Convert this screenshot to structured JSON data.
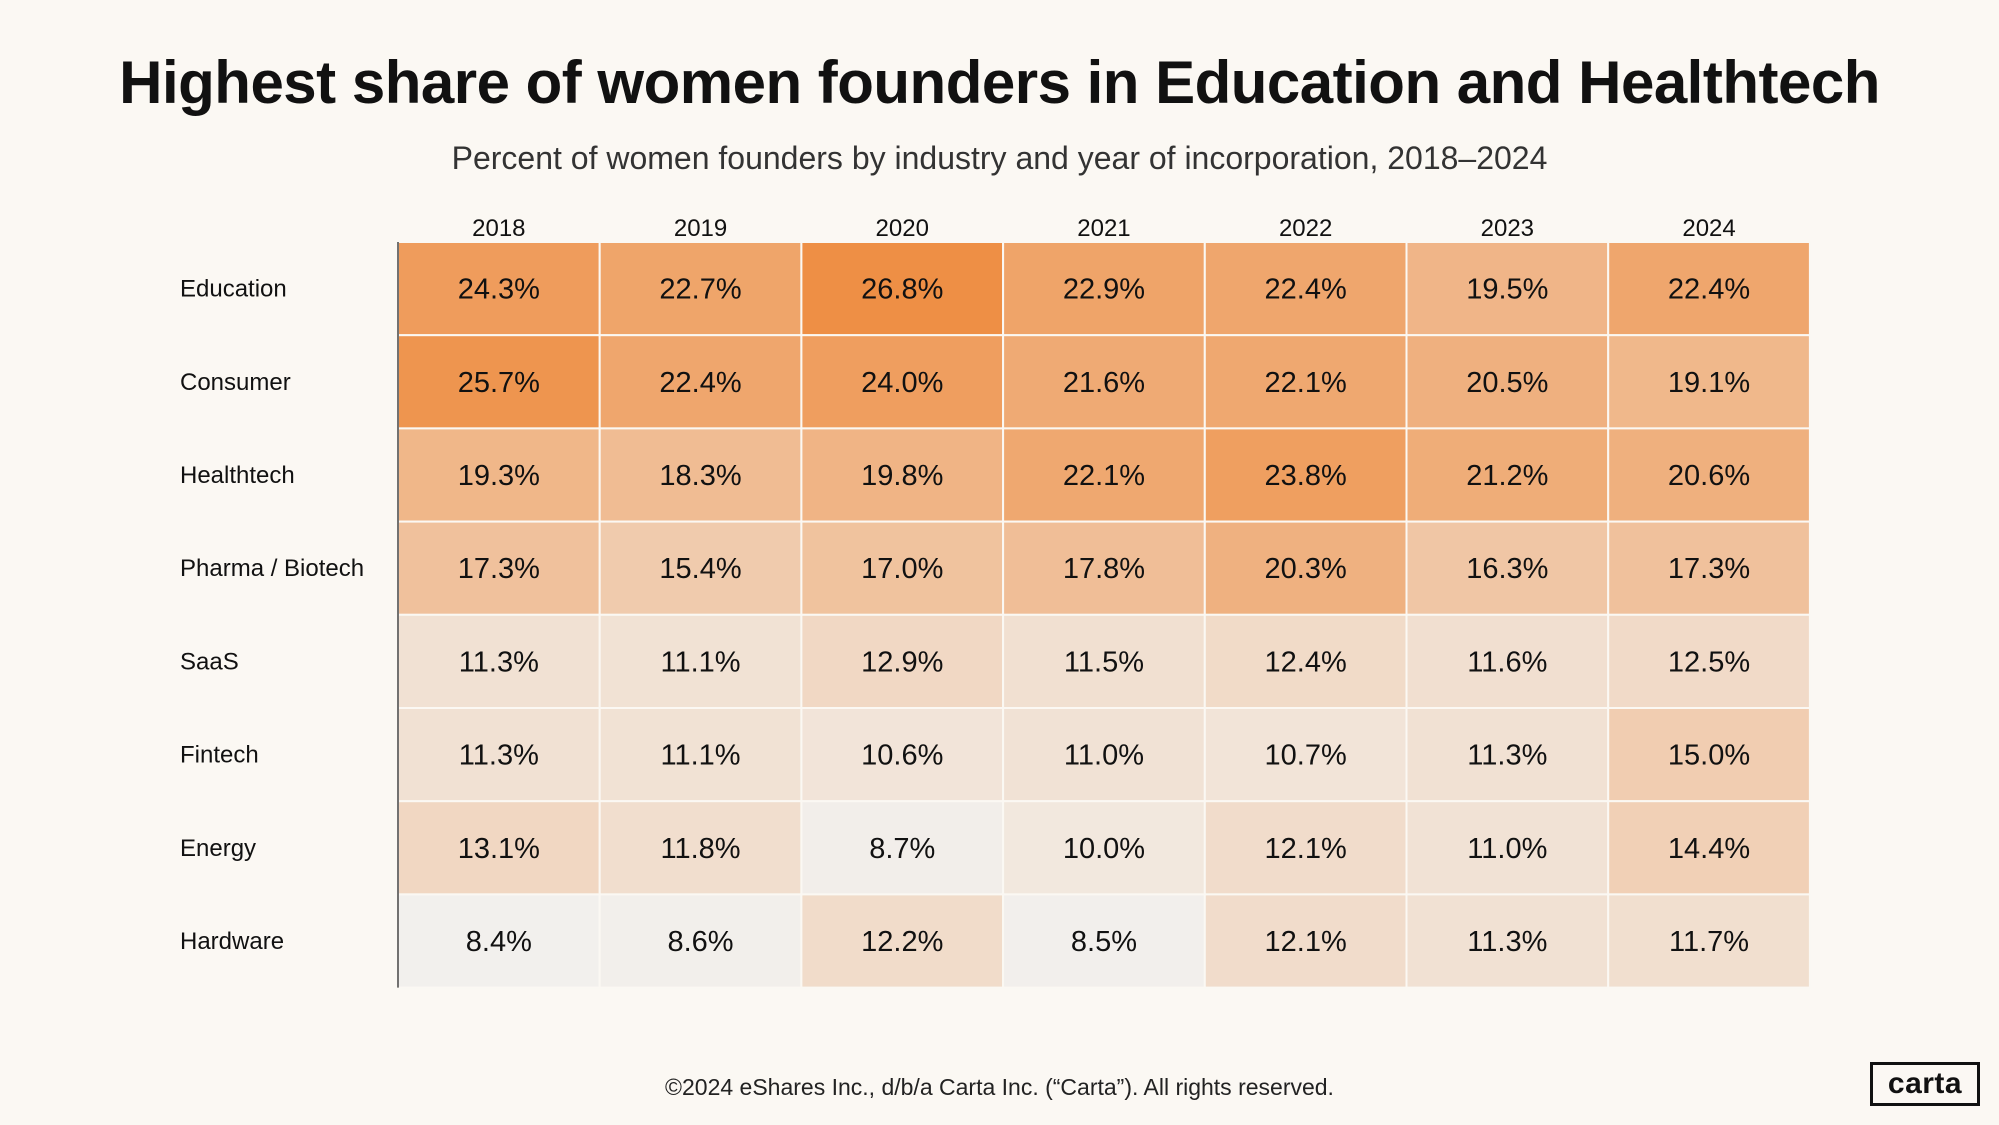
{
  "title": "Highest share of women founders in Education and Healthtech",
  "subtitle": "Percent of women founders by industry and year of incorporation, 2018–2024",
  "footer": "©2024 eShares Inc., d/b/a Carta Inc. (“Carta”). All rights reserved.",
  "logo_text": "carta",
  "colors": {
    "low": "#f2f0ed",
    "high": "#ee8f45",
    "background": "#fbf8f3",
    "text": "#111111"
  },
  "chart_data": {
    "type": "heatmap",
    "title": "Highest share of women founders in Education and Healthtech",
    "subtitle": "Percent of women founders by industry and year of incorporation, 2018–2024",
    "columns": [
      "2018",
      "2019",
      "2020",
      "2021",
      "2022",
      "2023",
      "2024"
    ],
    "rows": [
      "Education",
      "Consumer",
      "Healthtech",
      "Pharma / Biotech",
      "SaaS",
      "Fintech",
      "Energy",
      "Hardware"
    ],
    "values": [
      [
        24.3,
        22.7,
        26.8,
        22.9,
        22.4,
        19.5,
        22.4
      ],
      [
        25.7,
        22.4,
        24.0,
        21.6,
        22.1,
        20.5,
        19.1
      ],
      [
        19.3,
        18.3,
        19.8,
        22.1,
        23.8,
        21.2,
        20.6
      ],
      [
        17.3,
        15.4,
        17.0,
        17.8,
        20.3,
        16.3,
        17.3
      ],
      [
        11.3,
        11.1,
        12.9,
        11.5,
        12.4,
        11.6,
        12.5
      ],
      [
        11.3,
        11.1,
        10.6,
        11.0,
        10.7,
        11.3,
        15.0
      ],
      [
        13.1,
        11.8,
        8.7,
        10.0,
        12.1,
        11.0,
        14.4
      ],
      [
        8.4,
        8.6,
        12.2,
        8.5,
        12.1,
        11.3,
        11.7
      ]
    ],
    "labels": [
      [
        "24.3%",
        "22.7%",
        "26.8%",
        "22.9%",
        "22.4%",
        "19.5%",
        "22.4%"
      ],
      [
        "25.7%",
        "22.4%",
        "24.0%",
        "21.6%",
        "22.1%",
        "20.5%",
        "19.1%"
      ],
      [
        "19.3%",
        "18.3%",
        "19.8%",
        "22.1%",
        "23.8%",
        "21.2%",
        "20.6%"
      ],
      [
        "17.3%",
        "15.4%",
        "17.0%",
        "17.8%",
        "20.3%",
        "16.3%",
        "17.3%"
      ],
      [
        "11.3%",
        "11.1%",
        "12.9%",
        "11.5%",
        "12.4%",
        "11.6%",
        "12.5%"
      ],
      [
        "11.3%",
        "11.1%",
        "10.6%",
        "11.0%",
        "10.7%",
        "11.3%",
        "15.0%"
      ],
      [
        "13.1%",
        "11.8%",
        "8.7%",
        "10.0%",
        "12.1%",
        "11.0%",
        "14.4%"
      ],
      [
        "8.4%",
        "8.6%",
        "12.2%",
        "8.5%",
        "12.1%",
        "11.3%",
        "11.7%"
      ]
    ],
    "color_range": [
      8.4,
      26.8
    ]
  }
}
